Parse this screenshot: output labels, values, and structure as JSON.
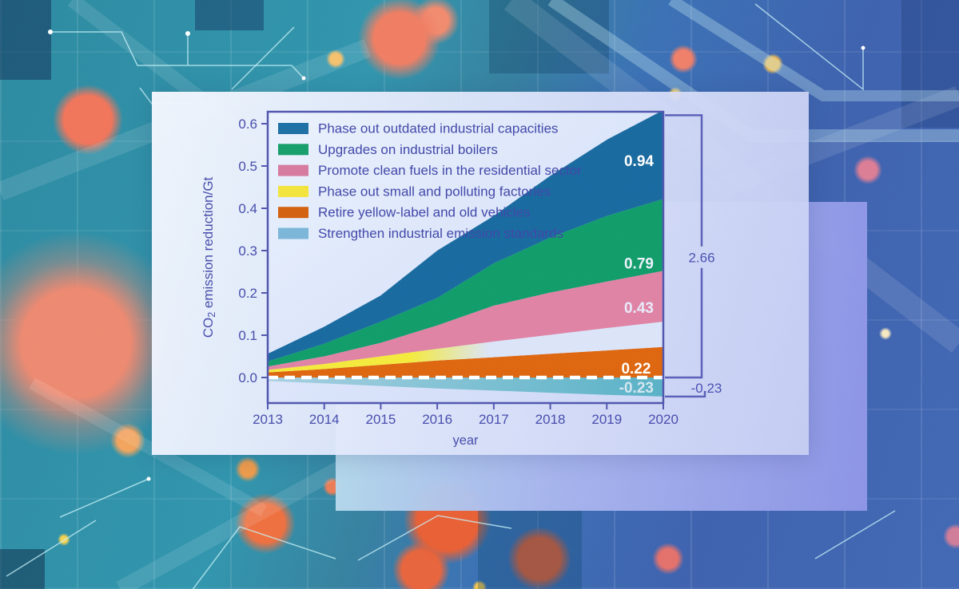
{
  "colors": {
    "background_teal": "#2f93ab",
    "background_blue": "#3d61ae",
    "coral_dot": "#f0745a",
    "white_panel": "#e9eefb",
    "lavender_panel": "#a9b6ee",
    "axis": "#5056ae",
    "tick_label": "#464cab",
    "legend_text": "#4046a8",
    "bracket_line": "#5a60b8",
    "bracket_label": "#4950b0",
    "zero_line": "#ffffff",
    "plot_bg_light": "#eaf2fd",
    "plot_bg_dark": "#ccd7f6"
  },
  "chart_data": {
    "type": "area",
    "stacked": true,
    "title": "",
    "xlabel": "year",
    "ylabel": "CO2 emission reduction/Gt",
    "ylabel_rich": {
      "prefix": "CO",
      "subscript": "2",
      "suffix": " emission reduction/Gt"
    },
    "x": [
      2013,
      2014,
      2015,
      2016,
      2017,
      2018,
      2019,
      2020
    ],
    "ylim": [
      -0.06,
      0.62
    ],
    "yticks": [
      0.0,
      0.1,
      0.2,
      0.3,
      0.4,
      0.5,
      0.6
    ],
    "grid": false,
    "legend_position": "upper-left-inside",
    "series_units": "Gt CO2 per year (annual values estimated from figure)",
    "series": [
      {
        "key": "retire_vehicles",
        "label": "Retire yellow-label and old vehicles",
        "area_color": "#de650e",
        "legend_color": "#d2600e",
        "values": [
          0.012,
          0.02,
          0.03,
          0.04,
          0.048,
          0.056,
          0.064,
          0.072
        ],
        "period_total_label": "0.22"
      },
      {
        "key": "small_factories",
        "label": "Phase out small and polluting factories",
        "area_color": "#f3e93c",
        "area_fade_color": "#dbe4f8",
        "legend_color": "#f2e33b",
        "values": [
          0.006,
          0.012,
          0.02,
          0.028,
          0.037,
          0.045,
          0.053,
          0.06
        ]
      },
      {
        "key": "residential_clean_fuels",
        "label": "Promote clean fuels in the residential sector",
        "area_color": "#df82a4",
        "legend_color": "#d6799f",
        "values": [
          0.008,
          0.018,
          0.032,
          0.055,
          0.085,
          0.1,
          0.11,
          0.12
        ],
        "period_total_label": "0.43"
      },
      {
        "key": "industrial_boilers",
        "label": "Upgrades on industrial boilers",
        "area_color": "#0f9c69",
        "legend_color": "#169e6a",
        "values": [
          0.012,
          0.03,
          0.05,
          0.065,
          0.1,
          0.13,
          0.155,
          0.17
        ],
        "period_total_label": "0.79"
      },
      {
        "key": "outdated_capacities",
        "label": "Phase out outdated industrial capacities",
        "area_color": "#17699f",
        "legend_color": "#1d6fa5",
        "values": [
          0.018,
          0.04,
          0.062,
          0.112,
          0.112,
          0.146,
          0.18,
          0.21
        ],
        "period_total_label": "0.94"
      }
    ],
    "negative_series": {
      "key": "emission_standards",
      "label": "Strengthen industrial emission standards",
      "area_color_left": "#a5cfe0",
      "area_color_right": "#58b1c6",
      "legend_color": "#7ab5d8",
      "values": [
        -0.008,
        -0.014,
        -0.02,
        -0.026,
        -0.031,
        -0.036,
        -0.041,
        -0.045
      ],
      "period_total_label": "-0.23"
    },
    "legend_order_top_to_bottom": [
      "outdated_capacities",
      "industrial_boilers",
      "residential_clean_fuels",
      "small_factories",
      "retire_vehicles",
      "emission_standards"
    ],
    "value_labels": [
      {
        "text": "0.94",
        "x_year": 2019.83,
        "value": 0.5,
        "color": "#ffffff"
      },
      {
        "text": "0.79",
        "x_year": 2019.83,
        "value": 0.258,
        "color": "#edf1fb"
      },
      {
        "text": "0.43",
        "x_year": 2019.83,
        "value": 0.153,
        "color": "#e7ebfa"
      },
      {
        "text": "0.22",
        "x_year": 2019.78,
        "value": 0.009,
        "color": "#ffffff"
      },
      {
        "text": "-0.23",
        "x_year": 2019.83,
        "value": -0.036,
        "color": "#d3e6f0"
      }
    ],
    "brackets": [
      {
        "label": "2.66",
        "from_value": 0.0,
        "to_value": 0.62,
        "kind": "positive-total"
      },
      {
        "label": "-0.23",
        "from_value": -0.045,
        "to_value": 0.0,
        "kind": "negative-total"
      }
    ],
    "zero_line": {
      "style": "dashed",
      "color": "#ffffff"
    }
  }
}
